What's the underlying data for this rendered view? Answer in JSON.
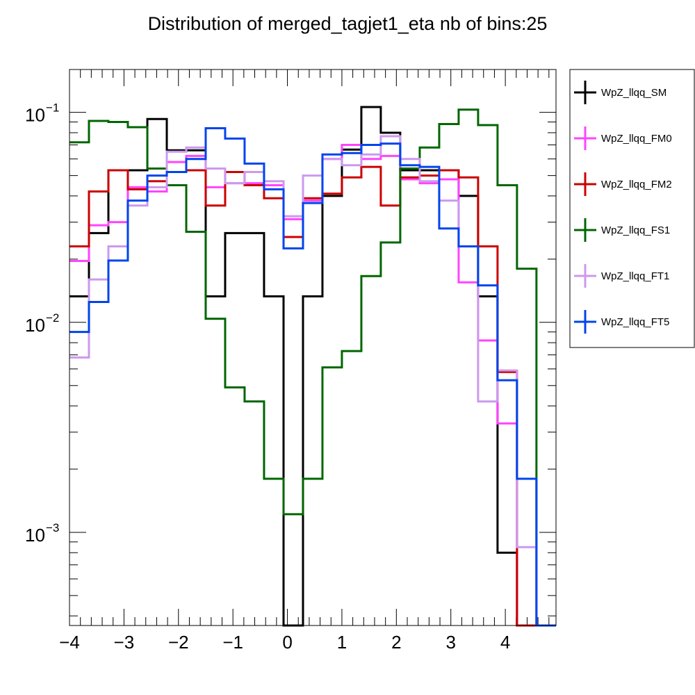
{
  "chart_data": {
    "type": "line",
    "title": "Distribution of merged_tagjet1_eta nb of bins:25",
    "xlabel": "",
    "ylabel": "",
    "x_range": [
      -4.0,
      4.93
    ],
    "y_range": [
      0.00036,
      0.16
    ],
    "y_scale": "log",
    "grid": false,
    "legend_position": "outside-right",
    "bin_edges": [
      -4.0,
      -3.643,
      -3.286,
      -2.929,
      -2.571,
      -2.214,
      -1.857,
      -1.5,
      -1.143,
      -0.786,
      -0.429,
      -0.071,
      0.286,
      0.643,
      1.0,
      1.357,
      1.714,
      2.071,
      2.429,
      2.786,
      3.143,
      3.5,
      3.857,
      4.214,
      4.571,
      4.93
    ],
    "x_ticks": [
      {
        "value": -4,
        "label": "−4"
      },
      {
        "value": -3,
        "label": "−3"
      },
      {
        "value": -2,
        "label": "−2"
      },
      {
        "value": -1,
        "label": "−1"
      },
      {
        "value": 0,
        "label": "0"
      },
      {
        "value": 1,
        "label": "1"
      },
      {
        "value": 2,
        "label": "2"
      },
      {
        "value": 3,
        "label": "3"
      },
      {
        "value": 4,
        "label": "4"
      }
    ],
    "y_ticks": [
      {
        "value": 0.1,
        "base": "10",
        "exp": "−1"
      },
      {
        "value": 0.01,
        "base": "10",
        "exp": "−2"
      },
      {
        "value": 0.001,
        "base": "10",
        "exp": "−3"
      }
    ],
    "series": [
      {
        "name": "WpZ_llqq_SM",
        "color": "#000000",
        "values": [
          0.0133,
          0.0266,
          0.053,
          0.053,
          0.093,
          0.066,
          0.066,
          0.0133,
          0.0266,
          0.0266,
          0.0133,
          0.0003,
          0.0133,
          0.04,
          0.0665,
          0.106,
          0.08,
          0.053,
          0.053,
          0.053,
          0.04,
          0.0133,
          0.0008,
          0.0003,
          0.0003
        ]
      },
      {
        "name": "WpZ_llqq_FM0",
        "color": "#ff44ff",
        "values": [
          0.0196,
          0.029,
          0.03,
          0.044,
          0.042,
          0.058,
          0.062,
          0.044,
          0.046,
          0.046,
          0.045,
          0.031,
          0.038,
          0.06,
          0.07,
          0.06,
          0.062,
          0.048,
          0.046,
          0.048,
          0.0155,
          0.0082,
          0.0033,
          0.0003,
          0.0003
        ]
      },
      {
        "name": "WpZ_llqq_FM2",
        "color": "#cc0000",
        "values": [
          0.023,
          0.042,
          0.053,
          0.043,
          0.047,
          0.052,
          0.053,
          0.036,
          0.052,
          0.045,
          0.039,
          0.0255,
          0.039,
          0.041,
          0.049,
          0.055,
          0.036,
          0.049,
          0.05,
          0.053,
          0.049,
          0.023,
          0.0058,
          0.0003,
          0.0003
        ]
      },
      {
        "name": "WpZ_llqq_FS1",
        "color": "#006600",
        "values": [
          0.072,
          0.091,
          0.09,
          0.085,
          0.054,
          0.045,
          0.027,
          0.0104,
          0.0049,
          0.0042,
          0.0018,
          0.00122,
          0.0018,
          0.0061,
          0.0073,
          0.0166,
          0.024,
          0.054,
          0.068,
          0.088,
          0.103,
          0.087,
          0.045,
          0.018,
          0.0003
        ]
      },
      {
        "name": "WpZ_llqq_FT1",
        "color": "#cc99ee",
        "values": [
          0.0068,
          0.016,
          0.023,
          0.036,
          0.044,
          0.065,
          0.068,
          0.054,
          0.046,
          0.052,
          0.047,
          0.032,
          0.05,
          0.06,
          0.056,
          0.063,
          0.077,
          0.06,
          0.047,
          0.038,
          0.023,
          0.0042,
          0.0059,
          0.00085,
          0.0003
        ]
      },
      {
        "name": "WpZ_llqq_FT5",
        "color": "#0044ee",
        "values": [
          0.009,
          0.0125,
          0.0197,
          0.038,
          0.05,
          0.052,
          0.06,
          0.084,
          0.075,
          0.057,
          0.043,
          0.0225,
          0.037,
          0.063,
          0.064,
          0.07,
          0.071,
          0.056,
          0.055,
          0.028,
          0.023,
          0.015,
          0.0053,
          0.0018,
          0.0003
        ]
      }
    ]
  }
}
